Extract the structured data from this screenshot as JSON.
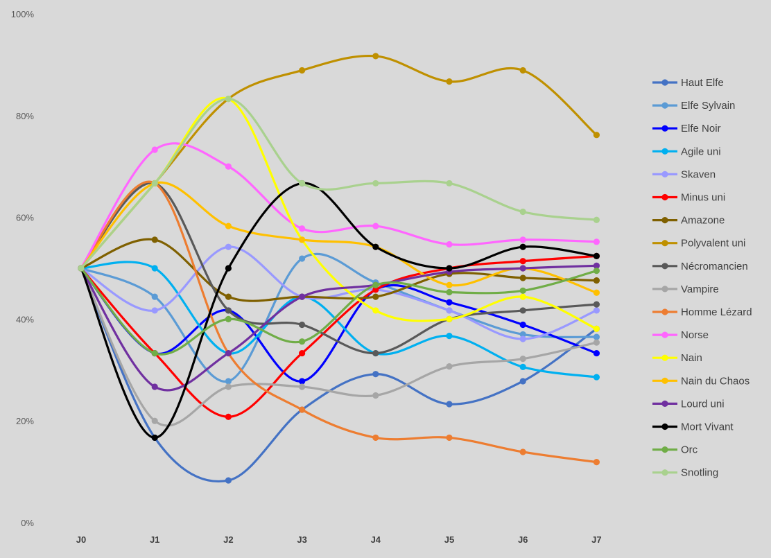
{
  "chart_data": {
    "type": "line",
    "smooth": true,
    "title": "",
    "xlabel": "",
    "ylabel": "",
    "ylim": [
      0,
      100
    ],
    "y_tick_values": [
      0,
      20,
      40,
      60,
      80,
      100
    ],
    "y_tick_labels": [
      "0%",
      "20%",
      "40%",
      "60%",
      "80%",
      "100%"
    ],
    "y_unit": "%",
    "grid": false,
    "legend": "right",
    "categories": [
      "J0",
      "J1",
      "J2",
      "J3",
      "J4",
      "J5",
      "J6",
      "J7"
    ],
    "series": [
      {
        "name": "Haut Elfe",
        "color": "#4472c4",
        "values": [
          50,
          16.7,
          8.3,
          22.2,
          29.2,
          23.3,
          27.8,
          38.1
        ]
      },
      {
        "name": "Elfe Sylvain",
        "color": "#5b9bd5",
        "values": [
          50,
          44.4,
          27.8,
          51.9,
          47.2,
          41.7,
          37,
          36.5
        ]
      },
      {
        "name": "Elfe Noir",
        "color": "#0000ff",
        "values": [
          50,
          33.3,
          41.7,
          27.8,
          45.8,
          43.3,
          38.9,
          33.3
        ]
      },
      {
        "name": "Agile uni",
        "color": "#00b0f0",
        "values": [
          50,
          50,
          33.3,
          44.4,
          33.3,
          36.7,
          30.6,
          28.6
        ]
      },
      {
        "name": "Skaven",
        "color": "#9999ff",
        "values": [
          50,
          41.7,
          54.2,
          44.4,
          45.8,
          41.7,
          36.1,
          41.7
        ]
      },
      {
        "name": "Minus uni",
        "color": "#ff0000",
        "values": [
          50,
          33.3,
          20.8,
          33.3,
          45.8,
          50,
          51.4,
          52.4
        ]
      },
      {
        "name": "Amazone",
        "color": "#7f6000",
        "values": [
          50,
          55.6,
          44.4,
          44.4,
          44.4,
          48.9,
          48.1,
          47.6
        ]
      },
      {
        "name": "Polyvalent uni",
        "color": "#bf9000",
        "values": [
          50,
          66.7,
          83.3,
          88.9,
          91.7,
          86.7,
          88.9,
          76.2
        ]
      },
      {
        "name": "Nécromancien",
        "color": "#595959",
        "values": [
          50,
          66.7,
          41.7,
          38.9,
          33.3,
          40,
          41.7,
          42.9
        ]
      },
      {
        "name": "Vampire",
        "color": "#a6a6a6",
        "values": [
          50,
          20,
          26.7,
          26.7,
          25,
          30.7,
          32.2,
          35.4
        ]
      },
      {
        "name": "Homme Lézard",
        "color": "#ed7d31",
        "values": [
          50,
          66.7,
          33.3,
          22.2,
          16.7,
          16.7,
          13.9,
          11.9
        ]
      },
      {
        "name": "Norse",
        "color": "#ff66ff",
        "values": [
          50,
          73.3,
          70,
          57.8,
          58.3,
          54.7,
          55.6,
          55.2
        ]
      },
      {
        "name": "Nain",
        "color": "#ffff00",
        "values": [
          50,
          66.7,
          83.3,
          55.6,
          41.7,
          40,
          44.4,
          38.1
        ]
      },
      {
        "name": "Nain du Chaos",
        "color": "#ffc000",
        "values": [
          50,
          66.7,
          58.3,
          55.6,
          54.2,
          46.7,
          50,
          45.2
        ]
      },
      {
        "name": "Lourd uni",
        "color": "#7030a0",
        "values": [
          50,
          26.7,
          33.3,
          44.4,
          46.7,
          49.3,
          50,
          50.5
        ]
      },
      {
        "name": "Mort Vivant",
        "color": "#000000",
        "values": [
          50,
          16.7,
          50,
          66.7,
          54.2,
          50,
          54.2,
          52.4
        ]
      },
      {
        "name": "Orc",
        "color": "#70ad47",
        "values": [
          50,
          33.3,
          40,
          35.6,
          46.7,
          45.3,
          45.6,
          49.5
        ]
      },
      {
        "name": "Snotling",
        "color": "#a9d18e",
        "values": [
          50,
          66.7,
          83.3,
          66.7,
          66.7,
          66.7,
          61.1,
          59.5
        ]
      }
    ]
  }
}
